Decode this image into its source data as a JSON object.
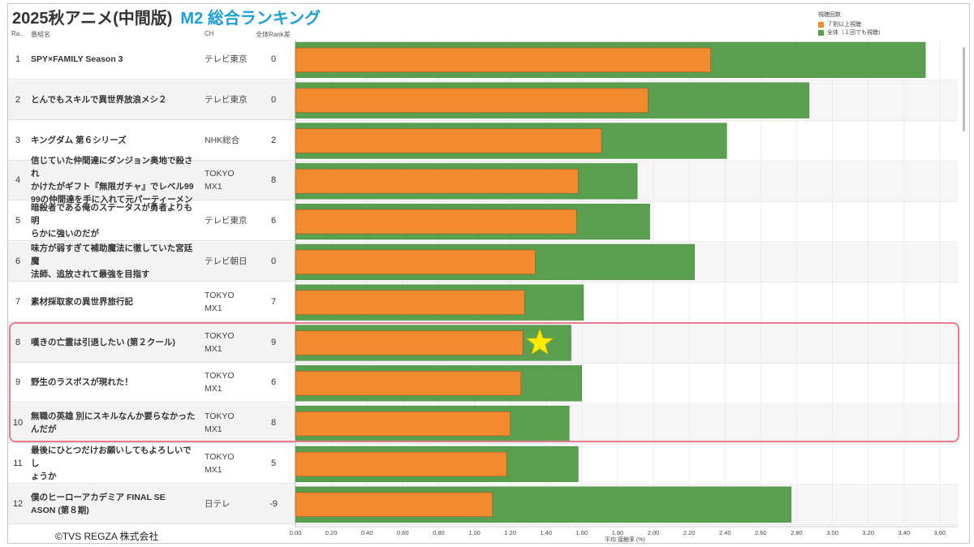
{
  "title": {
    "main": "2025秋アニメ(中間版)",
    "sub": "M2 総合ランキング"
  },
  "columns": {
    "rank": "Ra..",
    "name": "番組名",
    "ch": "CH",
    "diff": "全体Rank差"
  },
  "legend": {
    "title": "視聴回数",
    "items": [
      {
        "label": "７割以上視聴",
        "color": "#f28b30"
      },
      {
        "label": "全体（１回でも視聴）",
        "color": "#5a9e50"
      }
    ]
  },
  "copyright": "©TVS REGZA 株式会社",
  "highlight_ranks": [
    8,
    9,
    10
  ],
  "star_rank": 8,
  "chart_data": {
    "type": "bar",
    "orientation": "horizontal",
    "xlabel": "平均 接触率 (%)",
    "xlim": [
      0,
      3.7
    ],
    "ticks": [
      "0.00",
      "0.20",
      "0.40",
      "0.60",
      "0.80",
      "1.00",
      "1.20",
      "1.40",
      "1.60",
      "1.80",
      "2.00",
      "2.20",
      "2.40",
      "2.60",
      "2.80",
      "3.00",
      "3.20",
      "3.40",
      "3.60"
    ],
    "categories": [
      {
        "rank": "1",
        "name": [
          "SPY×FAMILY Season 3"
        ],
        "ch": [
          "テレビ東京"
        ],
        "diff": "0"
      },
      {
        "rank": "2",
        "name": [
          "とんでもスキルで異世界放浪メシ２"
        ],
        "ch": [
          "テレビ東京"
        ],
        "diff": "0"
      },
      {
        "rank": "3",
        "name": [
          "キングダム 第６シリーズ"
        ],
        "ch": [
          "NHK総合"
        ],
        "diff": "2"
      },
      {
        "rank": "4",
        "name": [
          "信じていた仲間達にダンジョン奥地で殺され",
          "かけたがギフト『無限ガチャ』でレベル99",
          "99の仲間達を手に入れて元パーティーメン"
        ],
        "ch": [
          "TOKYO",
          "MX1"
        ],
        "diff": "8"
      },
      {
        "rank": "5",
        "name": [
          "暗殺者である俺のステータスが勇者よりも明",
          "らかに強いのだが"
        ],
        "ch": [
          "テレビ東京"
        ],
        "diff": "6"
      },
      {
        "rank": "6",
        "name": [
          "味方が弱すぎて補助魔法に徹していた宮廷魔",
          "法師、追放されて最強を目指す"
        ],
        "ch": [
          "テレビ朝日"
        ],
        "diff": "0"
      },
      {
        "rank": "7",
        "name": [
          "素材採取家の異世界旅行記"
        ],
        "ch": [
          "TOKYO",
          "MX1"
        ],
        "diff": "7"
      },
      {
        "rank": "8",
        "name": [
          "嘆きの亡霊は引退したい (第２クール)"
        ],
        "ch": [
          "TOKYO",
          "MX1"
        ],
        "diff": "9"
      },
      {
        "rank": "9",
        "name": [
          "野生のラスボスが現れた！"
        ],
        "ch": [
          "TOKYO",
          "MX1"
        ],
        "diff": "6"
      },
      {
        "rank": "10",
        "name": [
          "無職の英雄 別にスキルなんか要らなかった",
          "んだが"
        ],
        "ch": [
          "TOKYO",
          "MX1"
        ],
        "diff": "8"
      },
      {
        "rank": "11",
        "name": [
          "最後にひとつだけお願いしてもよろしいでし",
          "ょうか"
        ],
        "ch": [
          "TOKYO",
          "MX1"
        ],
        "diff": "5"
      },
      {
        "rank": "12",
        "name": [
          "僕のヒーローアカデミア FINAL SE",
          "ASON (第８期)"
        ],
        "ch": [
          "日テレ"
        ],
        "diff": "-9"
      }
    ],
    "series": [
      {
        "name": "全体（１回でも視聴）",
        "color": "#5a9e50",
        "values": [
          3.52,
          2.87,
          2.41,
          1.91,
          1.98,
          2.23,
          1.61,
          1.54,
          1.6,
          1.53,
          1.58,
          2.77
        ]
      },
      {
        "name": "７割以上視聴",
        "color": "#f28b30",
        "values": [
          2.32,
          1.97,
          1.71,
          1.58,
          1.57,
          1.34,
          1.28,
          1.27,
          1.26,
          1.2,
          1.18,
          1.1
        ]
      }
    ]
  }
}
